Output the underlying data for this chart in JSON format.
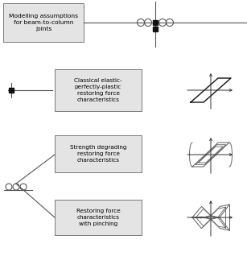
{
  "fig_width": 3.07,
  "fig_height": 3.39,
  "dpi": 100,
  "title_box_text": "Modelling assumptions\nfor beam-to-column\njoints",
  "label1": "Classical elastic-\nperfectly-plastic\nrestoring force\ncharacteristics",
  "label2": "Strength degrading\nrestoring force\ncharacteristics",
  "label3": "Restoring force\ncharacteristics\nwith pinching",
  "line_color": "#555555",
  "dark_color": "#111111",
  "box_edge": "#666666",
  "box_face": "#e4e4e4"
}
